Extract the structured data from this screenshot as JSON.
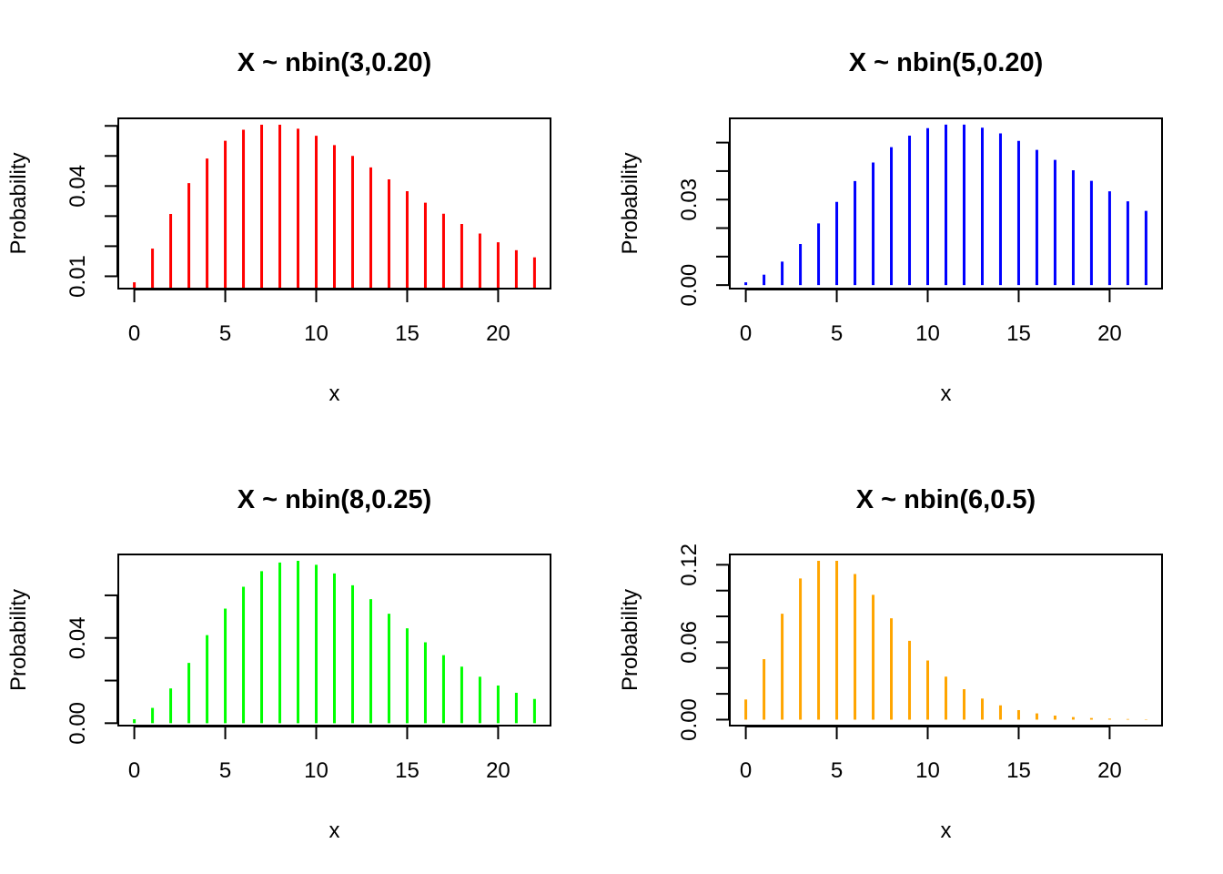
{
  "chart_data": [
    {
      "type": "bar",
      "style": "spikes",
      "title": "X ~ nbin(3,0.20)",
      "xlabel": "x",
      "ylabel": "Probability",
      "color": "#ff0000",
      "x": [
        0,
        1,
        2,
        3,
        4,
        5,
        6,
        7,
        8,
        9,
        10,
        11,
        12,
        13,
        14,
        15,
        16,
        17,
        18,
        19,
        20,
        21,
        22
      ],
      "values": [
        0.008,
        0.0192,
        0.03072,
        0.04096,
        0.049152,
        0.05505,
        0.05872,
        0.060398,
        0.060398,
        0.059056,
        0.056694,
        0.053601,
        0.050028,
        0.04618,
        0.042221,
        0.03828,
        0.034452,
        0.030804,
        0.027381,
        0.024212,
        0.021306,
        0.018668,
        0.016293
      ],
      "xlim": [
        -0.88,
        22.88
      ],
      "ylim": [
        0.0059,
        0.0625
      ],
      "xticks": [
        0,
        5,
        10,
        15,
        20
      ],
      "xtick_labels": [
        "0",
        "5",
        "10",
        "15",
        "20"
      ],
      "yticks": [
        0.01,
        0.02,
        0.03,
        0.04,
        0.05,
        0.06
      ],
      "ytick_labels": [
        {
          "value": 0.01,
          "label": "0.01"
        },
        {
          "value": 0.04,
          "label": "0.04"
        }
      ]
    },
    {
      "type": "bar",
      "style": "spikes",
      "title": "X ~ nbin(5,0.20)",
      "xlabel": "x",
      "ylabel": "Probability",
      "color": "#0000ff",
      "x": [
        0,
        1,
        2,
        3,
        4,
        5,
        6,
        7,
        8,
        9,
        10,
        11,
        12,
        13,
        14,
        15,
        16,
        17,
        18,
        19,
        20,
        21,
        22
      ],
      "values": [
        0.000977,
        0.003662,
        0.00824,
        0.01442,
        0.021629,
        0.029201,
        0.0365,
        0.043017,
        0.048394,
        0.052427,
        0.055049,
        0.0563,
        0.056299,
        0.055217,
        0.053245,
        0.050581,
        0.047423,
        0.043935,
        0.040275,
        0.036562,
        0.032905,
        0.029377,
        0.02604
      ],
      "xlim": [
        -0.88,
        22.88
      ],
      "ylim": [
        -0.00123,
        0.0585
      ],
      "xticks": [
        0,
        5,
        10,
        15,
        20
      ],
      "xtick_labels": [
        "0",
        "5",
        "10",
        "15",
        "20"
      ],
      "yticks": [
        0,
        0.01,
        0.02,
        0.03,
        0.04,
        0.05
      ],
      "ytick_labels": [
        {
          "value": 0,
          "label": "0.00"
        },
        {
          "value": 0.03,
          "label": "0.03"
        }
      ]
    },
    {
      "type": "bar",
      "style": "spikes",
      "title": "X ~ nbin(8,0.25)",
      "xlabel": "x",
      "ylabel": "Probability",
      "color": "#00ff00",
      "x": [
        0,
        1,
        2,
        3,
        4,
        5,
        6,
        7,
        8,
        9,
        10,
        11,
        12,
        13,
        14,
        15,
        16,
        17,
        18,
        19,
        20,
        21,
        22
      ],
      "values": [
        0.001838,
        0.007169,
        0.016311,
        0.028271,
        0.041347,
        0.05375,
        0.064053,
        0.071372,
        0.075387,
        0.076225,
        0.074323,
        0.070268,
        0.064703,
        0.058231,
        0.051366,
        0.044518,
        0.037969,
        0.03195,
        0.026537,
        0.0218,
        0.017679,
        0.014269,
        0.011368
      ],
      "xlim": [
        -0.88,
        22.88
      ],
      "ylim": [
        -0.00114,
        0.0792
      ],
      "xticks": [
        0,
        5,
        10,
        15,
        20
      ],
      "xtick_labels": [
        "0",
        "5",
        "10",
        "15",
        "20"
      ],
      "yticks": [
        0,
        0.02,
        0.04,
        0.06
      ],
      "ytick_labels": [
        {
          "value": 0,
          "label": "0.00"
        },
        {
          "value": 0.04,
          "label": "0.04"
        }
      ]
    },
    {
      "type": "bar",
      "style": "spikes",
      "title": "X ~ nbin(6,0.5)",
      "xlabel": "x",
      "ylabel": "Probability",
      "color": "#ffa500",
      "x": [
        0,
        1,
        2,
        3,
        4,
        5,
        6,
        7,
        8,
        9,
        10,
        11,
        12,
        13,
        14,
        15,
        16,
        17,
        18,
        19,
        20,
        21,
        22
      ],
      "values": [
        0.015625,
        0.046875,
        0.082031,
        0.109375,
        0.123047,
        0.123047,
        0.112793,
        0.09668,
        0.078552,
        0.061096,
        0.045822,
        0.033325,
        0.023605,
        0.016342,
        0.011089,
        0.007393,
        0.004852,
        0.003139,
        0.002006,
        0.001267,
        0.000792,
        0.00049,
        0.000301
      ],
      "xlim": [
        -0.88,
        22.88
      ],
      "ylim": [
        -0.00461,
        0.128
      ],
      "xticks": [
        0,
        5,
        10,
        15,
        20
      ],
      "xtick_labels": [
        "0",
        "5",
        "10",
        "15",
        "20"
      ],
      "yticks": [
        0,
        0.02,
        0.04,
        0.06,
        0.08,
        0.1,
        0.12
      ],
      "ytick_labels": [
        {
          "value": 0,
          "label": "0.00"
        },
        {
          "value": 0.06,
          "label": "0.06"
        },
        {
          "value": 0.12,
          "label": "0.12"
        }
      ]
    }
  ]
}
